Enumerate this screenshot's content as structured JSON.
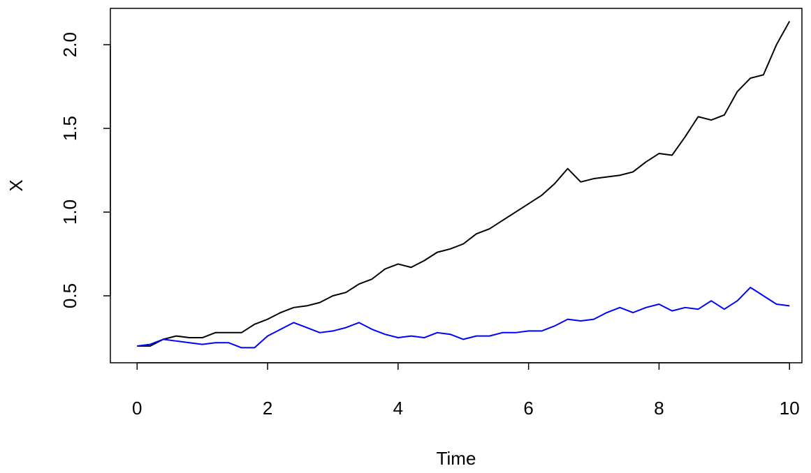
{
  "chart_data": {
    "type": "line",
    "xlabel": "Time",
    "ylabel": "X",
    "x": [
      0,
      0.2,
      0.4,
      0.6,
      0.8,
      1.0,
      1.2,
      1.4,
      1.6,
      1.8,
      2.0,
      2.2,
      2.4,
      2.6,
      2.8,
      3.0,
      3.2,
      3.4,
      3.6,
      3.8,
      4.0,
      4.2,
      4.4,
      4.6,
      4.8,
      5.0,
      5.2,
      5.4,
      5.6,
      5.8,
      6.0,
      6.2,
      6.4,
      6.6,
      6.8,
      7.0,
      7.2,
      7.4,
      7.6,
      7.8,
      8.0,
      8.2,
      8.4,
      8.6,
      8.8,
      9.0,
      9.2,
      9.4,
      9.6,
      9.8,
      10.0
    ],
    "series": [
      {
        "color": "#000000",
        "values": [
          0.2,
          0.2,
          0.24,
          0.26,
          0.25,
          0.25,
          0.28,
          0.28,
          0.28,
          0.33,
          0.36,
          0.4,
          0.43,
          0.44,
          0.46,
          0.5,
          0.52,
          0.57,
          0.6,
          0.66,
          0.69,
          0.67,
          0.71,
          0.76,
          0.78,
          0.81,
          0.87,
          0.9,
          0.95,
          1.0,
          1.05,
          1.1,
          1.17,
          1.26,
          1.18,
          1.2,
          1.21,
          1.22,
          1.24,
          1.3,
          1.35,
          1.34,
          1.45,
          1.57,
          1.55,
          1.58,
          1.72,
          1.8,
          1.82,
          2.0,
          2.14
        ]
      },
      {
        "color": "#0000ff",
        "values": [
          0.2,
          0.21,
          0.24,
          0.23,
          0.22,
          0.21,
          0.22,
          0.22,
          0.19,
          0.19,
          0.26,
          0.3,
          0.34,
          0.31,
          0.28,
          0.29,
          0.31,
          0.34,
          0.3,
          0.27,
          0.25,
          0.26,
          0.25,
          0.28,
          0.27,
          0.24,
          0.26,
          0.26,
          0.28,
          0.28,
          0.29,
          0.29,
          0.32,
          0.36,
          0.35,
          0.36,
          0.4,
          0.43,
          0.4,
          0.43,
          0.45,
          0.41,
          0.43,
          0.42,
          0.47,
          0.42,
          0.47,
          0.55,
          0.5,
          0.45,
          0.44
        ]
      }
    ],
    "xlim": [
      -0.41,
      10.19
    ],
    "ylim": [
      0.1,
      2.217
    ],
    "xticks": [
      0,
      2,
      4,
      6,
      8,
      10
    ],
    "yticks": [
      0.5,
      {
        "value": 1.0,
        "label": "1.0"
      },
      1.5,
      {
        "value": 2.0,
        "label": "2.0"
      }
    ]
  }
}
